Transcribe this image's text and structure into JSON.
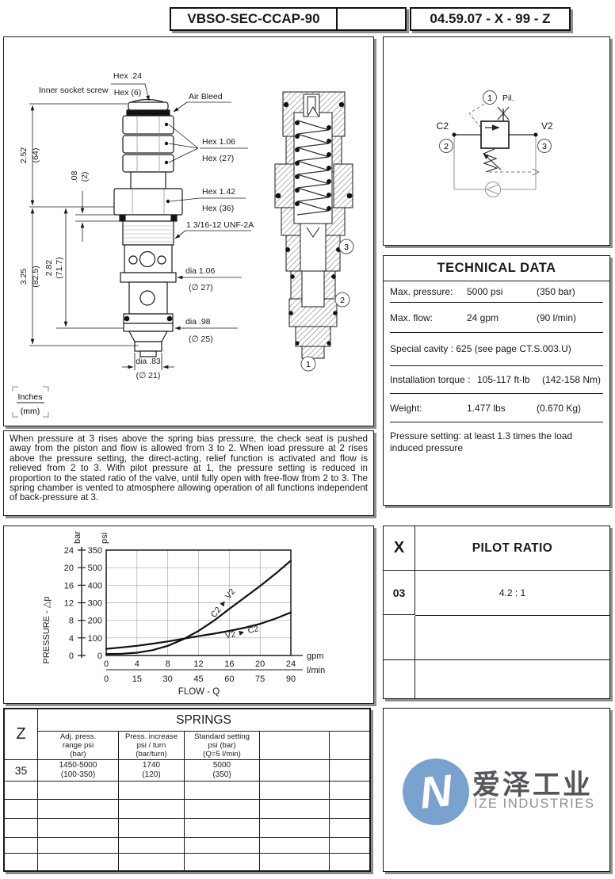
{
  "header": {
    "part_number": "VBSO-SEC-CCAP-90",
    "doc_code": "04.59.07 - X - 99 - Z"
  },
  "outline": {
    "inner_socket_screw": "Inner socket screw",
    "hex_top": "Hex .24",
    "hex_top_mm": "Hex (6)",
    "air_bleed": "Air Bleed",
    "hex_mid": "Hex 1.06",
    "hex_mid_mm": "Hex (27)",
    "hex_nut": "Hex 1.42",
    "hex_nut_mm": "Hex (36)",
    "thread": "1 3/16-12 UNF-2A",
    "dia_body": "dia 1.06",
    "dia_body_mm": "(∅ 27)",
    "dia_seat": "dia .98",
    "dia_seat_mm": "(∅ 25)",
    "dia_nose": "dia .83",
    "dia_nose_mm": "(∅ 21)",
    "dim_len_top": "2.52",
    "dim_len_top_mm": "(64)",
    "dim_washer": ".08",
    "dim_washer_mm": "(2)",
    "dim_len_total": "3.25",
    "dim_len_total_mm": "(82.5)",
    "dim_len_mid": "2.82",
    "dim_len_mid_mm": "(71.7)",
    "units_top": "Inches",
    "units_bottom": "(mm)"
  },
  "section": {
    "callout_3": "3",
    "callout_2": "2",
    "callout_1": "1"
  },
  "schematic": {
    "pilot_circle": "1",
    "pilot_label": "Pil.",
    "port_c2": "C2",
    "port_c2_circle": "2",
    "port_v2": "V2",
    "port_v2_circle": "3"
  },
  "technical_data": {
    "title": "TECHNICAL DATA",
    "rows": [
      {
        "label": "Max. pressure:",
        "value": "5000 psi",
        "metric": "(350 bar)"
      },
      {
        "label": "Max. flow:",
        "value": "24 gpm",
        "metric": "(90 l/min)"
      },
      {
        "label": "Special cavity : 625 (see page CT.S.003.U)",
        "value": "",
        "metric": ""
      },
      {
        "label": "Installation torque :",
        "value": "105-117 ft-lb",
        "metric": "(142-158 Nm)"
      },
      {
        "label": "Weight:",
        "value": "1.477 lbs",
        "metric": "(0.670 Kg)"
      },
      {
        "label": "Pressure setting: at least 1.3 times the load induced pressure",
        "value": "",
        "metric": ""
      }
    ]
  },
  "description": "When pressure at 3 rises above the spring bias pressure, the check seat is pushed away from the piston and flow is allowed from 3 to 2.  When load pressure at 2 rises above the pressure setting, the direct-acting, relief function is activated and flow is relieved from 2 to 3.  With pilot pressure at 1, the pressure setting is reduced in proportion to the stated ratio of the valve, until fully open with free-flow from 2 to 3.  The spring chamber is vented to atmosphere allowing operation of all functions independent of back-pressure at 3.",
  "chart_data": {
    "type": "line",
    "xlabel": "FLOW - Q",
    "ylabel": "PRESSURE - △p",
    "x_unit_primary": "gpm",
    "x_unit_secondary": "l/min",
    "y_unit_primary": "bar",
    "y_unit_secondary": "psi",
    "xlim_gpm": [
      0,
      24
    ],
    "grid": true,
    "x_ticks_gpm": [
      0,
      4,
      8,
      12,
      16,
      20,
      24
    ],
    "x_ticks_lmin": [
      0,
      15,
      30,
      45,
      60,
      75,
      90
    ],
    "y_ticks_bar": [
      0,
      4,
      8,
      12,
      16,
      20,
      24
    ],
    "y_tick_labels_psi": [
      "0",
      "100",
      "200",
      "300",
      "400",
      "500",
      "350"
    ],
    "series": [
      {
        "name": "C2 ► V2",
        "x_gpm": [
          0,
          2,
          4,
          6,
          8,
          10,
          12,
          14,
          16,
          18,
          20,
          22,
          24
        ],
        "y_psi": [
          8,
          10,
          16,
          30,
          55,
          92,
          140,
          198,
          265,
          330,
          395,
          465,
          540
        ]
      },
      {
        "name": "V2 ► C2",
        "x_gpm": [
          0,
          2,
          4,
          6,
          8,
          10,
          12,
          14,
          16,
          18,
          20,
          22,
          24
        ],
        "y_psi": [
          38,
          46,
          55,
          67,
          80,
          95,
          110,
          124,
          140,
          158,
          180,
          210,
          245
        ]
      }
    ]
  },
  "pilot_ratio": {
    "header_code": "X",
    "header_label": "PILOT RATIO",
    "rows": [
      {
        "code": "03",
        "ratio": "4.2 : 1"
      },
      {
        "code": "",
        "ratio": ""
      },
      {
        "code": "",
        "ratio": ""
      }
    ]
  },
  "springs": {
    "header_code": "Z",
    "title": "SPRINGS",
    "col1": [
      "Adj. press.",
      "range psi",
      "(bar)"
    ],
    "col2": [
      "Press. increase",
      "psi / turn",
      "(bar/turn)"
    ],
    "col3": [
      "Standard setting",
      "psi (bar)",
      "(Q=5 l/min)"
    ],
    "rows": [
      {
        "code": "35",
        "c1": [
          "1450-5000",
          "(100-350)"
        ],
        "c2": [
          "1740",
          "(120)"
        ],
        "c3": [
          "5000",
          "(350)"
        ]
      }
    ]
  },
  "logo": {
    "cn": "爱泽工业",
    "en": "IZE INDUSTRIES",
    "brand_blue": "#7aa2cf"
  }
}
